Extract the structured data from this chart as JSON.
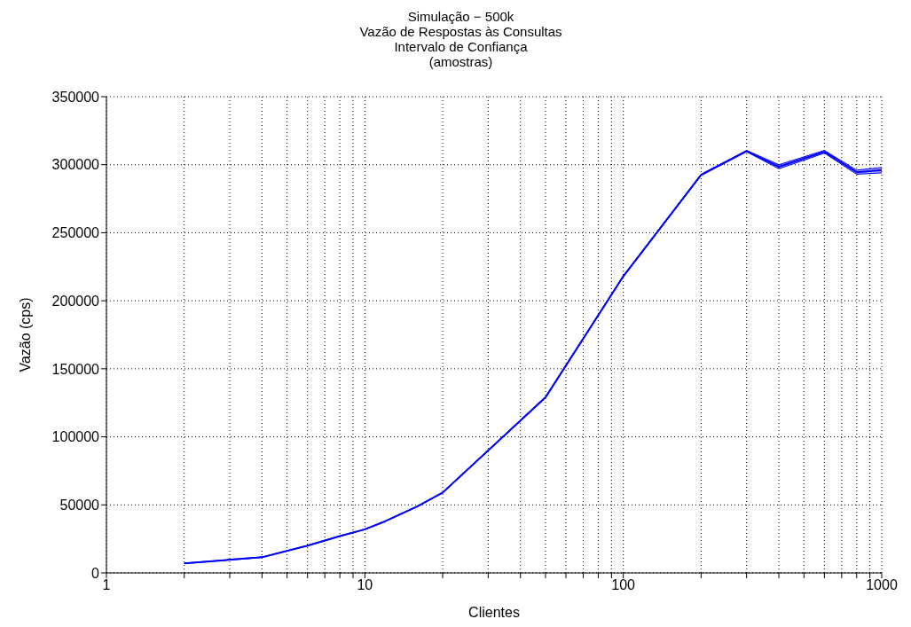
{
  "chart_data": {
    "type": "line",
    "title": "Simulação − 500k\nVazão de Respostas às Consultas\nIntervalo de Confiança\n(amostras)",
    "xlabel": "Clientes",
    "ylabel": "Vazão (cps)",
    "x": [
      2,
      4,
      6,
      8,
      10,
      12,
      16,
      20,
      50,
      100,
      200,
      300,
      400,
      600,
      800,
      1000
    ],
    "series": [
      {
        "color": "#0000ff",
        "values": [
          7000,
          11500,
          20000,
          27000,
          32000,
          38000,
          49000,
          59000,
          129000,
          218000,
          292500,
          310000,
          298500,
          309500,
          294500,
          296000
        ],
        "lower": [
          6800,
          11300,
          19800,
          26800,
          31800,
          37800,
          48800,
          58800,
          128500,
          217500,
          292000,
          309500,
          297000,
          308500,
          293000,
          294000
        ],
        "upper": [
          7200,
          11700,
          20200,
          27200,
          32200,
          38200,
          49200,
          59200,
          129500,
          218500,
          293000,
          310500,
          300000,
          310500,
          296000,
          298000
        ]
      }
    ],
    "log": "x",
    "xlim": [
      1,
      1000
    ],
    "ylim": [
      0,
      350000
    ],
    "xticks": [
      1,
      {
        "value": 2,
        "label": null
      },
      {
        "value": 3,
        "label": null
      },
      {
        "value": 4,
        "label": null
      },
      {
        "value": 5,
        "label": null
      },
      {
        "value": 6,
        "label": null
      },
      {
        "value": 7,
        "label": null
      },
      {
        "value": 8,
        "label": null
      },
      {
        "value": 9,
        "label": null
      },
      10,
      {
        "value": 20,
        "label": null
      },
      {
        "value": 30,
        "label": null
      },
      {
        "value": 40,
        "label": null
      },
      {
        "value": 50,
        "label": null
      },
      {
        "value": 60,
        "label": null
      },
      {
        "value": 70,
        "label": null
      },
      {
        "value": 80,
        "label": null
      },
      {
        "value": 90,
        "label": null
      },
      100,
      {
        "value": 200,
        "label": null
      },
      {
        "value": 300,
        "label": null
      },
      {
        "value": 400,
        "label": null
      },
      {
        "value": 500,
        "label": null
      },
      {
        "value": 600,
        "label": null
      },
      {
        "value": 700,
        "label": null
      },
      {
        "value": 800,
        "label": null
      },
      {
        "value": 900,
        "label": null
      },
      1000
    ],
    "yticks": [
      0,
      50000,
      100000,
      150000,
      200000,
      250000,
      300000,
      350000
    ],
    "grid": true,
    "marker": "none",
    "line_style": "solid"
  }
}
